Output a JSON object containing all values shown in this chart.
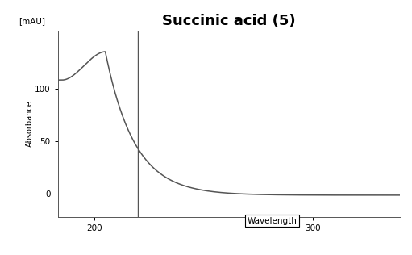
{
  "title": "Succinic acid (5)",
  "title_fontsize": 13,
  "title_fontweight": "bold",
  "ylabel": "Absorbance",
  "ylabel_fontsize": 7,
  "yunits_label": "[mAU]",
  "xlabel_label": "Wavelength",
  "xlabel_fontsize": 7.5,
  "xlim": [
    183,
    340
  ],
  "ylim": [
    -22,
    155
  ],
  "yticks": [
    0,
    50,
    100
  ],
  "xticks": [
    200,
    300
  ],
  "vertical_line_x": 220,
  "line_color": "#555555",
  "background_color": "#ffffff",
  "axes_bg_color": "#ffffff",
  "spine_color": "#555555"
}
